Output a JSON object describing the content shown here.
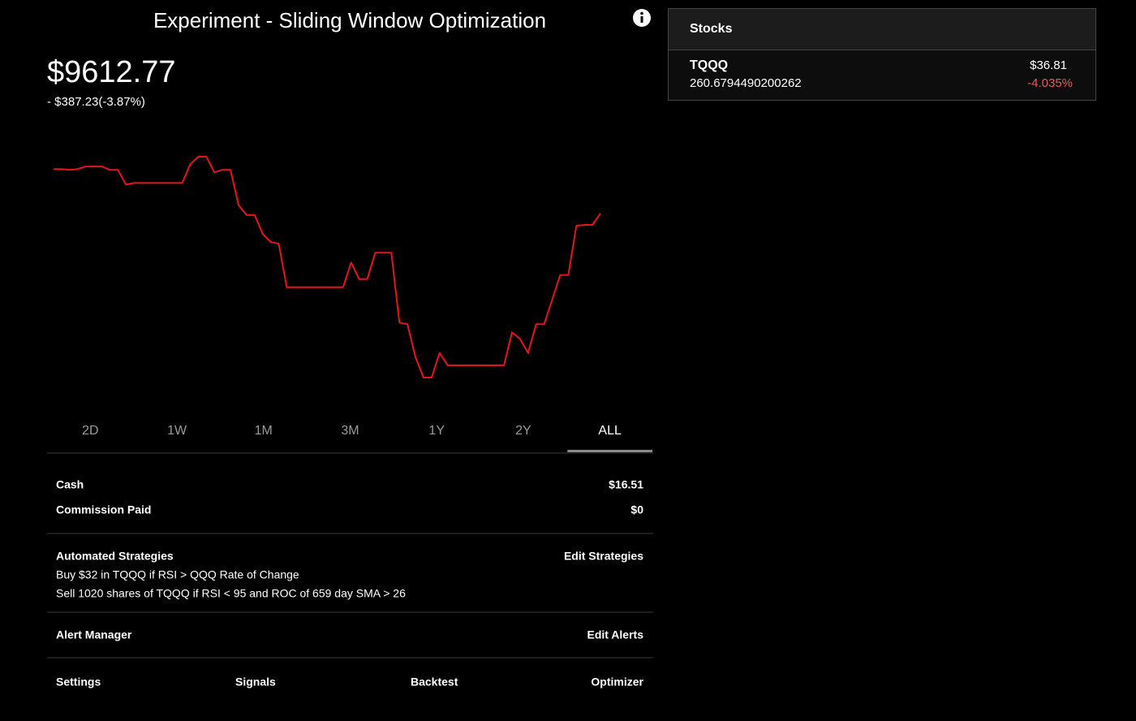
{
  "header": {
    "title": "Experiment - Sliding Window Optimization"
  },
  "portfolio": {
    "value": "$9612.77",
    "change": "- $387.23(-3.87%)"
  },
  "chart_data": {
    "type": "line",
    "series": [
      {
        "color": "#e8141c",
        "values": [
          10000,
          10000,
          9993,
          10000,
          10022,
          10022,
          10022,
          9993,
          9993,
          9864,
          9878,
          9878,
          9878,
          9878,
          9878,
          9878,
          9878,
          10043,
          10108,
          10108,
          9971,
          9993,
          9993,
          9685,
          9598,
          9598,
          9434,
          9362,
          9348,
          8968,
          8968,
          8968,
          8968,
          8968,
          8968,
          8968,
          8968,
          9183,
          9039,
          9039,
          9269,
          9269,
          9269,
          8659,
          8645,
          8358,
          8179,
          8179,
          8394,
          8286,
          8286,
          8286,
          8286,
          8286,
          8286,
          8286,
          8286,
          8573,
          8516,
          8394,
          8645,
          8645,
          8860,
          9075,
          9075,
          9505,
          9512,
          9512,
          9613
        ]
      }
    ]
  },
  "ranges": {
    "options": [
      "2D",
      "1W",
      "1M",
      "3M",
      "1Y",
      "2Y",
      "ALL"
    ],
    "selected": 6
  },
  "account": {
    "rows": [
      {
        "label": "Cash",
        "value": "$16.51"
      },
      {
        "label": "Commission Paid",
        "value": "$0"
      }
    ]
  },
  "strategies": {
    "title": "Automated Strategies",
    "action": "Edit Strategies",
    "items": [
      "Buy $32 in TQQQ if RSI > QQQ Rate of Change",
      "Sell 1020 shares of TQQQ if RSI < 95 and ROC of 659 day SMA > 26"
    ]
  },
  "alerts": {
    "title": "Alert Manager",
    "action": "Edit Alerts"
  },
  "footer_nav": [
    "Settings",
    "Signals",
    "Backtest",
    "Optimizer"
  ],
  "stocks_panel": {
    "title": "Stocks",
    "holdings": [
      {
        "symbol": "TQQQ",
        "shares": "260.6794490200262",
        "price": "$36.81",
        "change": "-4.035%"
      }
    ]
  }
}
